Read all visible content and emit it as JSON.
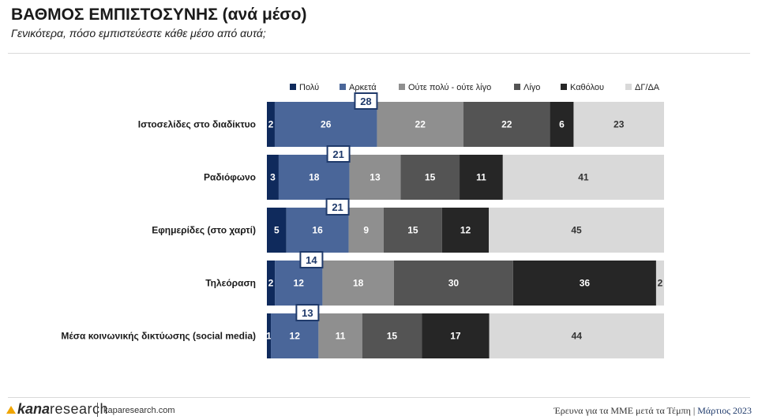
{
  "header": {
    "title": "ΒΑΘΜΟΣ ΕΜΠΙΣΤΟΣΥΝΗΣ (ανά μέσο)",
    "subtitle": "Γενικότερα, πόσο εμπιστεύεστε κάθε μέσο από αυτά;"
  },
  "footer": {
    "logo_kana": "kana",
    "logo_research": "research",
    "url": "kaparesearch.com",
    "survey": "Έρευνα για τα ΜΜΕ μετά τα Τέμπη",
    "separator": "|",
    "date": "Μάρτιος 2023"
  },
  "chart_data": {
    "type": "bar",
    "orientation": "horizontal",
    "stacked": true,
    "percent_stacked": true,
    "categories": [
      "Ιστοσελίδες στο διαδίκτυο",
      "Ραδιόφωνο",
      "Εφημερίδες (στο χαρτί)",
      "Τηλεόραση",
      "Μέσα κοινωνικής δικτύωσης (social media)"
    ],
    "series": [
      {
        "name": "Πολύ",
        "color": "#0f2a5c",
        "values": [
          2,
          3,
          5,
          2,
          1
        ]
      },
      {
        "name": "Αρκετά",
        "color": "#4a6699",
        "values": [
          26,
          18,
          16,
          12,
          12
        ]
      },
      {
        "name": "Ούτε πολύ - ούτε λίγο",
        "color": "#8f8f8f",
        "values": [
          22,
          13,
          9,
          18,
          11
        ]
      },
      {
        "name": "Λίγο",
        "color": "#545454",
        "values": [
          22,
          15,
          15,
          30,
          15
        ]
      },
      {
        "name": "Καθόλου",
        "color": "#262626",
        "values": [
          6,
          11,
          12,
          36,
          17
        ]
      },
      {
        "name": "ΔΓ/ΔΑ",
        "color": "#d9d9d9",
        "values": [
          23,
          41,
          45,
          2,
          44
        ]
      }
    ],
    "totals_trust": [
      28,
      21,
      21,
      14,
      13
    ],
    "legend_position": "top",
    "grid": false
  }
}
